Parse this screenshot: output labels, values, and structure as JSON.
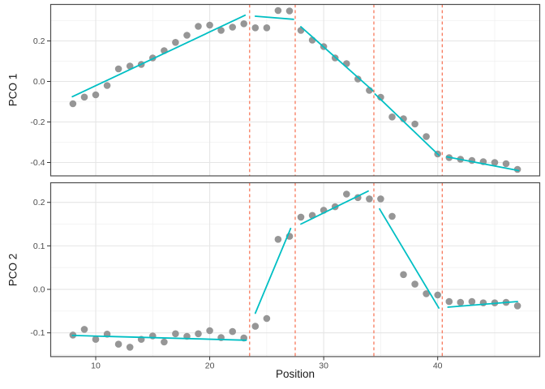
{
  "window": {
    "background": "#ffffff"
  },
  "chart_data": {
    "type": "scatter",
    "title": "",
    "xlabel": "Position",
    "xlim": [
      6.05,
      48.95
    ],
    "x_ticks": [
      {
        "value": 10,
        "label": "10"
      },
      {
        "value": 20,
        "label": "20"
      },
      {
        "value": 30,
        "label": "30"
      },
      {
        "value": 40,
        "label": "40"
      }
    ],
    "x_minor": [
      15,
      25,
      35,
      45
    ],
    "breakpoints": [
      23.5,
      27.5,
      34.4,
      40.4
    ],
    "positions": [
      8,
      9,
      10,
      11,
      12,
      13,
      14,
      15,
      16,
      17,
      18,
      19,
      20,
      21,
      22,
      23,
      24,
      25,
      26,
      27,
      28,
      29,
      30,
      31,
      32,
      33,
      34,
      35,
      36,
      37,
      38,
      39,
      40,
      41,
      42,
      43,
      44,
      45,
      46,
      47
    ],
    "panels": [
      {
        "ylabel": "PCO 1",
        "ylim": [
          -0.466,
          0.38
        ],
        "y_ticks": [
          {
            "value": 0.2,
            "label": "0.2"
          },
          {
            "value": 0.0,
            "label": "0.0"
          },
          {
            "value": -0.2,
            "label": "-0.2"
          },
          {
            "value": -0.4,
            "label": "-0.4"
          }
        ],
        "y_minor": [
          0.3,
          0.1,
          -0.1,
          -0.3
        ],
        "values": [
          -0.11,
          -0.077,
          -0.066,
          -0.02,
          0.062,
          0.076,
          0.084,
          0.116,
          0.152,
          0.193,
          0.228,
          0.272,
          0.278,
          0.252,
          0.268,
          0.285,
          0.265,
          0.265,
          0.35,
          0.348,
          0.252,
          0.204,
          0.172,
          0.116,
          0.088,
          0.012,
          -0.044,
          -0.078,
          -0.175,
          -0.184,
          -0.21,
          -0.272,
          -0.358,
          -0.376,
          -0.384,
          -0.39,
          -0.396,
          -0.4,
          -0.406,
          -0.434
        ],
        "segments": [
          [
            7.95,
            -0.075,
            23.1,
            0.327
          ],
          [
            24.0,
            0.322,
            27.35,
            0.307
          ],
          [
            28.0,
            0.27,
            34.4,
            -0.05
          ],
          [
            34.5,
            -0.062,
            40.1,
            -0.364
          ],
          [
            40.8,
            -0.372,
            47.1,
            -0.44
          ]
        ]
      },
      {
        "ylabel": "PCO 2",
        "ylim": [
          -0.1546,
          0.2451
        ],
        "y_ticks": [
          {
            "value": 0.2,
            "label": "0.2"
          },
          {
            "value": 0.1,
            "label": "0.1"
          },
          {
            "value": 0.0,
            "label": "0.0"
          },
          {
            "value": -0.1,
            "label": "-0.1"
          }
        ],
        "y_minor": [
          0.15,
          0.05,
          -0.05,
          -0.15
        ],
        "values": [
          -0.105,
          -0.092,
          -0.115,
          -0.103,
          -0.126,
          -0.133,
          -0.115,
          -0.107,
          -0.121,
          -0.102,
          -0.108,
          -0.102,
          -0.095,
          -0.111,
          -0.097,
          -0.112,
          -0.085,
          -0.067,
          0.115,
          0.122,
          0.166,
          0.17,
          0.182,
          0.19,
          0.219,
          0.211,
          0.208,
          0.208,
          0.168,
          0.034,
          0.012,
          -0.01,
          -0.013,
          -0.028,
          -0.03,
          -0.028,
          -0.031,
          -0.031,
          -0.03,
          -0.038
        ],
        "segments": [
          [
            7.95,
            -0.106,
            23.2,
            -0.117
          ],
          [
            24.0,
            -0.055,
            27.1,
            0.14
          ],
          [
            28.0,
            0.15,
            33.9,
            0.226
          ],
          [
            34.9,
            0.185,
            40.1,
            -0.043
          ],
          [
            40.9,
            -0.041,
            47.0,
            -0.028
          ]
        ]
      }
    ],
    "styles": {
      "point_color": "#969696",
      "trend_color": "#00BFC4",
      "breakpoint_color": "#F8795C",
      "grid_major_color": "#E5E5E5",
      "grid_minor_color": "#F1F1F1",
      "panel_border_color": "#4D4D4D",
      "tick_mark_color": "#333333",
      "tick_label_color": "#4D4D4D",
      "axis_title_color": "#1A1A1A"
    }
  }
}
